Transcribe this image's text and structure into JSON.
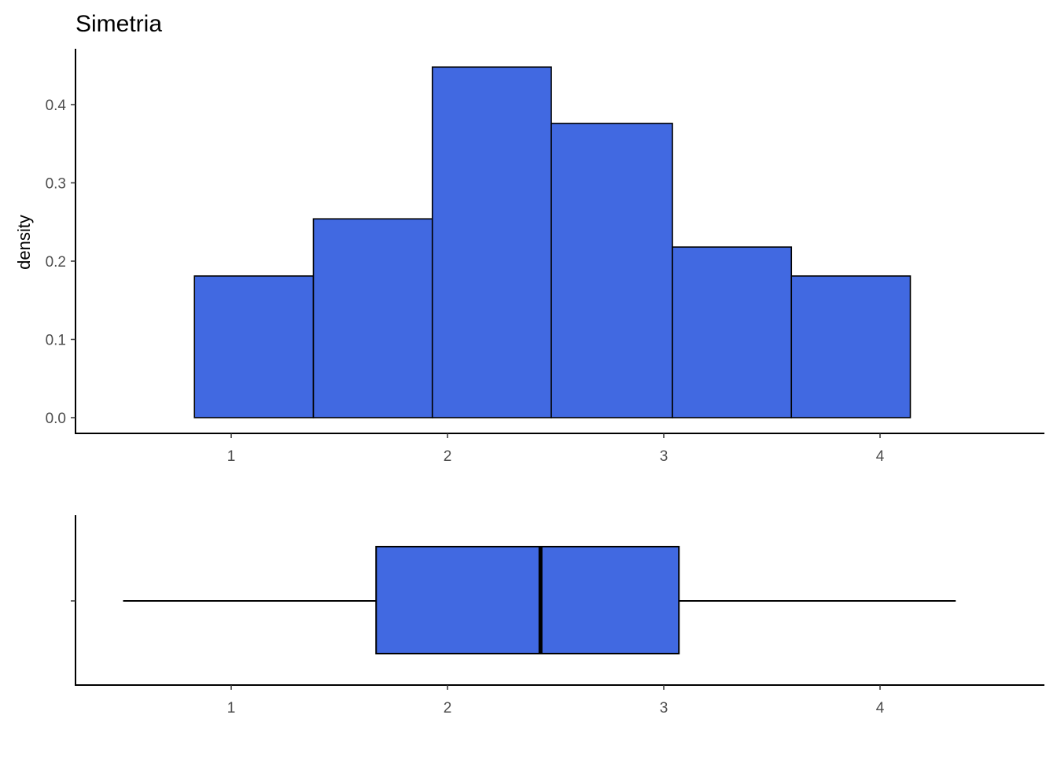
{
  "chart_data": [
    {
      "type": "histogram",
      "title": "Simetria",
      "xlabel": "",
      "ylabel": "density",
      "xlim": [
        0.28,
        4.76
      ],
      "ylim": [
        0,
        0.47
      ],
      "x_ticks": [
        1,
        2,
        3,
        4
      ],
      "y_ticks": [
        0.0,
        0.1,
        0.2,
        0.3,
        0.4
      ],
      "y_tick_labels": [
        "0.0",
        "0.1",
        "0.2",
        "0.3",
        "0.4"
      ],
      "bins": [
        {
          "x0": 0.83,
          "x1": 1.38,
          "density": 0.181
        },
        {
          "x0": 1.38,
          "x1": 1.93,
          "density": 0.254
        },
        {
          "x0": 1.93,
          "x1": 2.48,
          "density": 0.448
        },
        {
          "x0": 2.48,
          "x1": 3.04,
          "density": 0.376
        },
        {
          "x0": 3.04,
          "x1": 3.59,
          "density": 0.218
        },
        {
          "x0": 3.59,
          "x1": 4.14,
          "density": 0.181
        }
      ],
      "fill_color": "#4169E1",
      "border_color": "#000000",
      "grid": false
    },
    {
      "type": "boxplot",
      "orientation": "horizontal",
      "xlim": [
        0.28,
        4.76
      ],
      "x_ticks": [
        1,
        2,
        3,
        4
      ],
      "box": {
        "whisker_low": 0.5,
        "q1": 1.67,
        "median": 2.43,
        "q3": 3.07,
        "whisker_high": 4.35
      },
      "fill_color": "#4169E1",
      "border_color": "#000000",
      "grid": false
    }
  ]
}
